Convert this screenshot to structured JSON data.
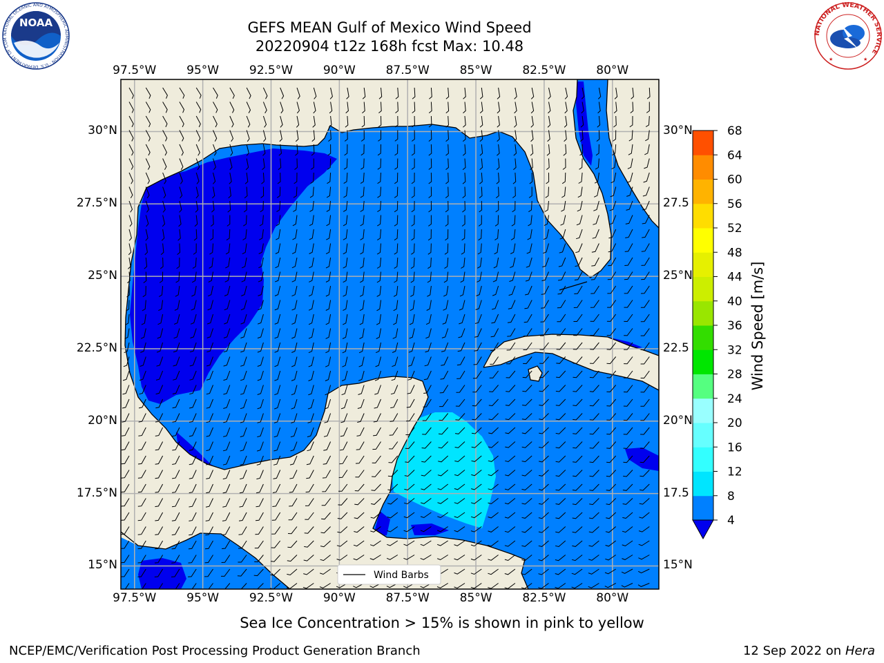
{
  "title": {
    "line1": "GEFS MEAN Gulf of Mexico Wind Speed",
    "line2": "20220904 t12z 168h fcst   Max: 10.48"
  },
  "logos": {
    "left": "NOAA",
    "left_ring": "NATIONAL OCEANIC AND ATMOSPHERIC ADMINISTRATION · U.S. DEPARTMENT OF COMMERCE",
    "right_ring": "NATIONAL WEATHER SERVICE"
  },
  "axes": {
    "lon_ticks": [
      "97.5°W",
      "95°W",
      "92.5°W",
      "90°W",
      "87.5°W",
      "85°W",
      "82.5°W",
      "80°W"
    ],
    "lat_ticks": [
      "30°N",
      "27.5°N",
      "25°N",
      "22.5°N",
      "20°N",
      "17.5°N",
      "15°N"
    ],
    "lat_ticks_right": [
      "30°N",
      "27.5",
      "25°N",
      "22.5",
      "20°N",
      "17.5",
      "15°N"
    ],
    "lon_range": [
      -98,
      -78.3
    ],
    "lat_range": [
      14.2,
      31.8
    ],
    "grid": true
  },
  "legend": {
    "label": "Wind Barbs",
    "position": "bottom-center"
  },
  "colorbar": {
    "label": "Wind Speed [m/s]",
    "ticks": [
      "4",
      "8",
      "12",
      "16",
      "20",
      "24",
      "28",
      "32",
      "36",
      "40",
      "44",
      "48",
      "52",
      "56",
      "60",
      "64",
      "68"
    ],
    "colors": [
      "#0080ff",
      "#00e5ff",
      "#33ffff",
      "#66ffff",
      "#99ffff",
      "#55ff80",
      "#00e600",
      "#33dd00",
      "#99e600",
      "#ccee00",
      "#e6f000",
      "#ffff00",
      "#ffdd00",
      "#ffb300",
      "#ff8c00",
      "#ff5000",
      "#ff1a00"
    ],
    "under_color": "#0000ee"
  },
  "map_colors": {
    "land": "#efecdc",
    "wind_0_4": "#0000ee",
    "wind_4_8": "#0080ff",
    "wind_8_12": "#00e5ff"
  },
  "note": "Sea Ice Concentration > 15% is shown in pink to yellow",
  "footer": {
    "left": "NCEP/EMC/Verification Post Processing Product Generation Branch",
    "date": "12 Sep 2022 on",
    "host": "Hera"
  }
}
